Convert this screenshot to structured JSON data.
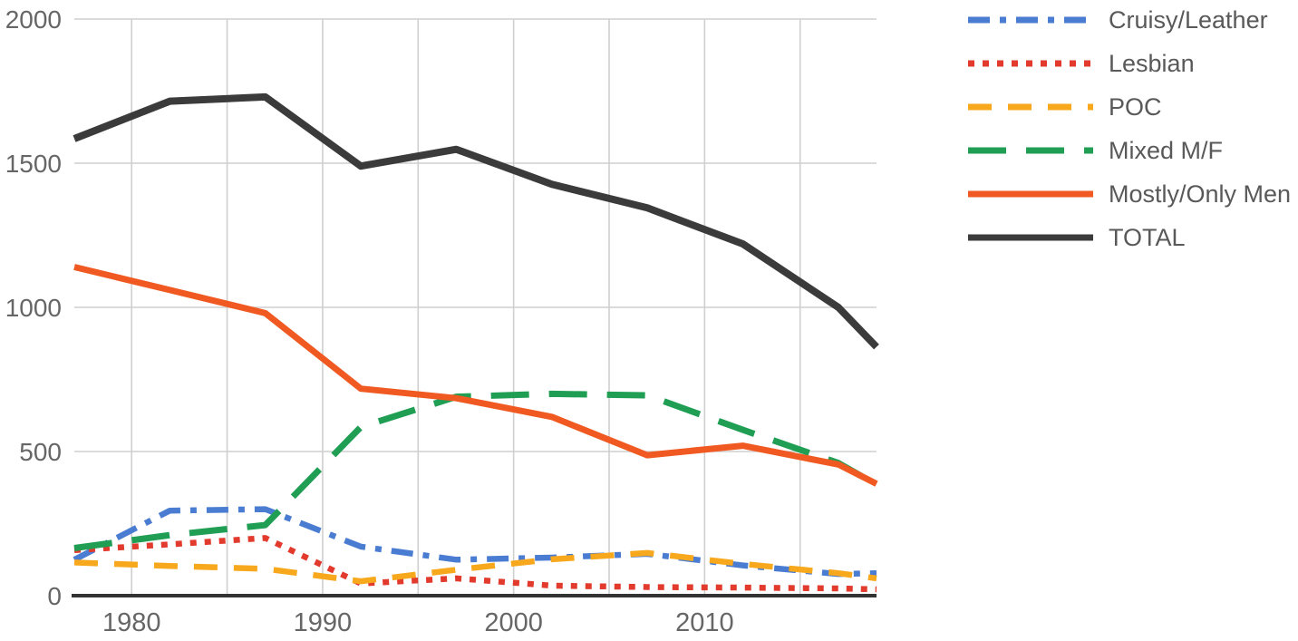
{
  "chart_data": {
    "type": "line",
    "title": "",
    "x": [
      1977,
      1982,
      1987,
      1992,
      1997,
      2002,
      2007,
      2012,
      2017,
      2019
    ],
    "series": [
      {
        "name": "Cruisy/Leather",
        "color": "#4a7dd2",
        "line_style": "dashdot",
        "values": [
          125,
          295,
          300,
          170,
          125,
          132,
          145,
          105,
          75,
          78
        ]
      },
      {
        "name": "Lesbian",
        "color": "#e23a2c",
        "line_style": "dotted",
        "values": [
          158,
          178,
          200,
          42,
          60,
          35,
          30,
          28,
          25,
          22
        ]
      },
      {
        "name": "POC",
        "color": "#f7a81c",
        "line_style": "dashed",
        "values": [
          115,
          103,
          93,
          50,
          90,
          126,
          148,
          110,
          78,
          60
        ]
      },
      {
        "name": "Mixed M/F",
        "color": "#1f9e54",
        "line_style": "longdash",
        "values": [
          165,
          210,
          245,
          585,
          690,
          700,
          695,
          575,
          460,
          385
        ]
      },
      {
        "name": "Mostly/Only Men",
        "color": "#f05a22",
        "line_style": "solid",
        "values": [
          1140,
          1060,
          980,
          718,
          685,
          620,
          487,
          520,
          455,
          388
        ]
      },
      {
        "name": "TOTAL",
        "color": "#3b3b3b",
        "line_style": "solid",
        "values": [
          1585,
          1715,
          1730,
          1490,
          1548,
          1427,
          1345,
          1220,
          1000,
          863
        ]
      }
    ],
    "xlim": [
      1977,
      2019
    ],
    "ylim": [
      0,
      2000
    ],
    "yticks": [
      0,
      500,
      1000,
      1500,
      2000
    ],
    "ytick_labels": [
      "0",
      "500",
      "1000",
      "1500",
      "2000"
    ],
    "xticks": [
      1980,
      1990,
      2000,
      2010
    ],
    "xtick_labels": [
      "1980",
      "1990",
      "2000",
      "2010"
    ],
    "x_gridlines": [
      1980,
      1985,
      1990,
      1995,
      2000,
      2005,
      2010,
      2015
    ],
    "grid": true,
    "grid_color": "#cfcfcf",
    "axis_color": "#333333",
    "tick_label_color": "#666666",
    "legend_text_color": "#595959",
    "legend_position": "right-top"
  }
}
